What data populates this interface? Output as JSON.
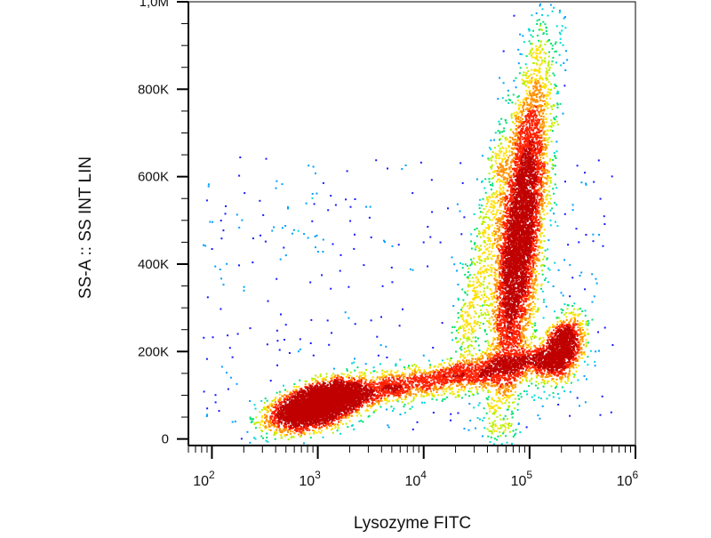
{
  "chart_data": {
    "type": "scatter",
    "subtype": "flow-cytometry-density-dot-plot",
    "xlabel": "Lysozyme FITC",
    "ylabel": "SS-A :: SS INT LIN",
    "x_scale": "log",
    "y_scale": "linear",
    "xlim": [
      60,
      1000000
    ],
    "ylim": [
      -15000,
      1000000
    ],
    "x_ticks": [
      {
        "value": 100,
        "base": "10",
        "exp": "2"
      },
      {
        "value": 1000,
        "base": "10",
        "exp": "3"
      },
      {
        "value": 10000,
        "base": "10",
        "exp": "4"
      },
      {
        "value": 100000,
        "base": "10",
        "exp": "5"
      },
      {
        "value": 1000000,
        "base": "10",
        "exp": "6"
      }
    ],
    "y_ticks": [
      {
        "value": 0,
        "label": "0"
      },
      {
        "value": 200000,
        "label": "200K"
      },
      {
        "value": 400000,
        "label": "400K"
      },
      {
        "value": 600000,
        "label": "600K"
      },
      {
        "value": 800000,
        "label": "800K"
      },
      {
        "value": 1000000,
        "label": "1,0M"
      }
    ],
    "grid": false,
    "legend": "none",
    "density_colors": [
      "#1a1aff",
      "#00a0ff",
      "#00d8d8",
      "#00e070",
      "#b8f000",
      "#ffe000",
      "#ff9000",
      "#ff2000",
      "#c00000"
    ],
    "populations": [
      {
        "center": [
          1000,
          80000
        ],
        "spread_log_x": 0.17,
        "spread_y": 24000,
        "tilt": 0.5,
        "density": "very high"
      },
      {
        "center": [
          80000,
          470000
        ],
        "spread_log_x": 0.12,
        "spread_y": 150000,
        "tilt": 0.8,
        "density": "high"
      },
      {
        "center": [
          200000,
          205000
        ],
        "spread_log_x": 0.1,
        "spread_y": 35000,
        "tilt": 0.4,
        "density": "medium"
      },
      {
        "center": [
          20000,
          140000
        ],
        "spread_log_x": 0.55,
        "spread_y": 30000,
        "tilt": 0.6,
        "density": "low"
      }
    ]
  }
}
